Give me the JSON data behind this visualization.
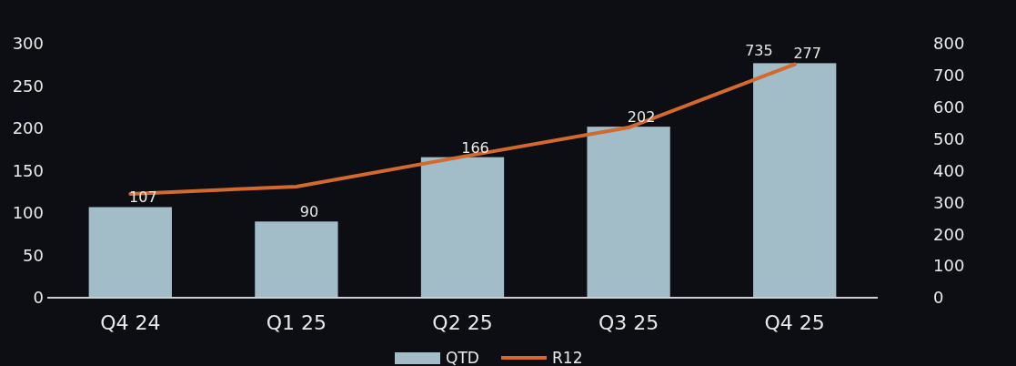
{
  "chart_data": {
    "type": "bar",
    "categories": [
      "Q4 24",
      "Q1 25",
      "Q2 25",
      "Q3 25",
      "Q4 25"
    ],
    "series": [
      {
        "name": "QTD",
        "color": "#a3bdc8",
        "values": [
          107,
          90,
          166,
          202,
          277
        ],
        "value_labels": [
          "107",
          "90",
          "166",
          "202",
          "277"
        ]
      },
      {
        "name": "R12",
        "type": "line",
        "axis": "y2",
        "color": "#d2692f",
        "values": [
          327,
          350,
          444,
          536,
          735
        ],
        "value_labels": [
          null,
          null,
          null,
          null,
          "735"
        ]
      }
    ],
    "ylim": [
      0,
      300
    ],
    "yticks": [
      0,
      50,
      100,
      150,
      200,
      250,
      300
    ],
    "y2lim": [
      0,
      800
    ],
    "y2ticks": [
      0,
      100,
      200,
      300,
      400,
      500,
      600,
      700,
      800
    ],
    "legend": "bottom",
    "grid": false
  }
}
